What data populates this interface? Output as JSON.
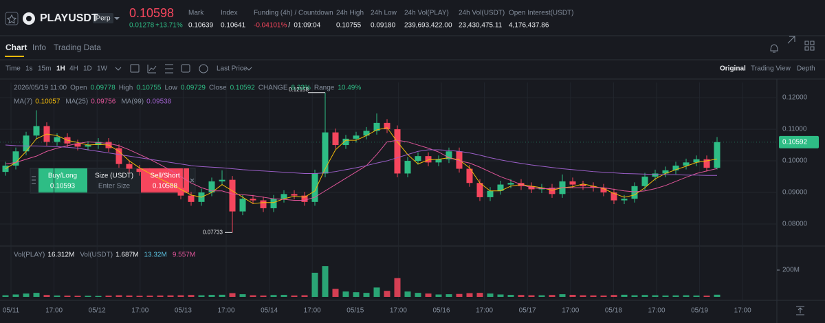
{
  "header": {
    "symbol": "PLAYUSDT",
    "badge": "Perp",
    "price": "0.10598",
    "change": "0.01278",
    "change_pct": "+13.71%",
    "stats": [
      {
        "label": "Mark",
        "value": "0.10639"
      },
      {
        "label": "Index",
        "value": "0.10641"
      }
    ],
    "funding": {
      "label": "Funding (4h) / Countdown",
      "rate": "-0.04101%",
      "countdown": "01:09:04"
    },
    "stats2": [
      {
        "label": "24h High",
        "value": "0.10755"
      },
      {
        "label": "24h Low",
        "value": "0.09180"
      },
      {
        "label": "24h Vol(PLAY)",
        "value": "239,693,422.00"
      },
      {
        "label": "24h Vol(USDT)",
        "value": "23,430,475.11"
      },
      {
        "label": "Open Interest(USDT)",
        "value": "4,176,437.86"
      }
    ]
  },
  "tabs": [
    "Chart",
    "Info",
    "Trading Data"
  ],
  "toolbar": {
    "time": "Time",
    "intervals": [
      "1s",
      "15m",
      "1H",
      "4H",
      "1D",
      "1W"
    ],
    "price_type": "Last Price",
    "views": [
      "Original",
      "Trading View",
      "Depth"
    ]
  },
  "ohlc_info": {
    "time": "2026/05/19 11:00",
    "open": "Open",
    "high": "High",
    "low": "Low",
    "close": "Close",
    "change_label": "CHANGE",
    "change": "8.33%",
    "range_label": "Range",
    "range": "10.49%"
  },
  "order": {
    "buy": "Buy/Long",
    "buy_price": "0.10593",
    "size": "Size (USDT)",
    "size_placeholder": "Enter Size",
    "sell": "Sell/Short",
    "sell_price": "0.10588"
  },
  "chart_data": {
    "type": "candlestick",
    "open": [
      0.0965,
      0.0985,
      0.103,
      0.108,
      0.111,
      0.106,
      0.1075,
      0.1055,
      0.1045,
      0.105,
      0.106,
      0.104,
      0.099,
      0.0975,
      0.0965,
      0.094,
      0.0925,
      0.0915,
      0.089,
      0.087,
      0.09,
      0.0935,
      0.094,
      0.084,
      0.088,
      0.0875,
      0.085,
      0.088,
      0.0895,
      0.089,
      0.087,
      0.096,
      0.109,
      0.105,
      0.107,
      0.108,
      0.1095,
      0.112,
      0.11,
      0.096,
      0.1,
      0.1015,
      0.0995,
      0.1005,
      0.103,
      0.0975,
      0.093,
      0.0885,
      0.0905,
      0.0925,
      0.093,
      0.092,
      0.091,
      0.0915,
      0.0895,
      0.0935,
      0.0925,
      0.092,
      0.0915,
      0.09,
      0.0875,
      0.088,
      0.092,
      0.095,
      0.096,
      0.097,
      0.0985,
      0.0995,
      0.1005,
      0.09778
    ],
    "high": [
      0.0997,
      0.1042,
      0.1092,
      0.116,
      0.1122,
      0.1087,
      0.1087,
      0.1067,
      0.1062,
      0.1072,
      0.1072,
      0.1052,
      0.1002,
      0.0987,
      0.0977,
      0.0952,
      0.0937,
      0.0927,
      0.0902,
      0.0912,
      0.0947,
      0.097,
      0.0952,
      0.0892,
      0.0892,
      0.0887,
      0.0892,
      0.0907,
      0.0907,
      0.0902,
      0.0972,
      0.12158,
      0.1102,
      0.1082,
      0.1092,
      0.1107,
      0.115,
      0.1132,
      0.1112,
      0.1012,
      0.1027,
      0.1027,
      0.1017,
      0.1042,
      0.1042,
      0.0987,
      0.0942,
      0.0917,
      0.0937,
      0.0942,
      0.0942,
      0.0932,
      0.0927,
      0.0927,
      0.0957,
      0.0947,
      0.0937,
      0.0932,
      0.0927,
      0.0912,
      0.0892,
      0.0932,
      0.0962,
      0.0972,
      0.0982,
      0.0997,
      0.1007,
      0.1017,
      0.1017,
      0.10755
    ],
    "low": [
      0.0953,
      0.0973,
      0.1018,
      0.1068,
      0.1048,
      0.1048,
      0.1043,
      0.1033,
      0.1033,
      0.1038,
      0.1028,
      0.0978,
      0.0963,
      0.0953,
      0.0928,
      0.0913,
      0.0903,
      0.0878,
      0.0858,
      0.0858,
      0.0888,
      0.0923,
      0.07733,
      0.0828,
      0.0863,
      0.0838,
      0.0838,
      0.0868,
      0.0878,
      0.0858,
      0.0858,
      0.0948,
      0.1038,
      0.1038,
      0.1058,
      0.1068,
      0.1083,
      0.1088,
      0.0948,
      0.0948,
      0.0988,
      0.0983,
      0.0983,
      0.0993,
      0.0963,
      0.0918,
      0.0873,
      0.0873,
      0.0893,
      0.0913,
      0.0908,
      0.0898,
      0.0898,
      0.0883,
      0.0883,
      0.0913,
      0.0908,
      0.0903,
      0.0888,
      0.0863,
      0.0863,
      0.0868,
      0.0908,
      0.0938,
      0.0948,
      0.0958,
      0.0973,
      0.0983,
      0.0966,
      0.09729
    ],
    "close": [
      0.0985,
      0.103,
      0.108,
      0.111,
      0.106,
      0.1075,
      0.1055,
      0.1045,
      0.105,
      0.106,
      0.104,
      0.099,
      0.0975,
      0.0965,
      0.094,
      0.0925,
      0.0915,
      0.089,
      0.087,
      0.09,
      0.0935,
      0.094,
      0.084,
      0.088,
      0.0875,
      0.085,
      0.088,
      0.0895,
      0.089,
      0.087,
      0.096,
      0.109,
      0.105,
      0.107,
      0.108,
      0.1095,
      0.112,
      0.11,
      0.096,
      0.1,
      0.1015,
      0.0995,
      0.1005,
      0.103,
      0.0975,
      0.093,
      0.0885,
      0.0905,
      0.0925,
      0.093,
      0.092,
      0.091,
      0.0915,
      0.0895,
      0.0935,
      0.0925,
      0.092,
      0.0915,
      0.09,
      0.0875,
      0.088,
      0.092,
      0.095,
      0.096,
      0.097,
      0.0985,
      0.0995,
      0.1005,
      0.0978,
      0.10592
    ],
    "up_color": "#2ebd85",
    "down_color": "#f6465d",
    "series": [
      {
        "name": "MA(7)",
        "color": "#f0b90b",
        "values": [
          0.0975,
          0.0995,
          0.103,
          0.107,
          0.1085,
          0.108,
          0.1065,
          0.1058,
          0.105,
          0.1052,
          0.105,
          0.103,
          0.1,
          0.0978,
          0.096,
          0.0943,
          0.0927,
          0.091,
          0.0892,
          0.0885,
          0.09,
          0.0925,
          0.0905,
          0.0885,
          0.0865,
          0.0868,
          0.0868,
          0.088,
          0.0888,
          0.0885,
          0.0905,
          0.0975,
          0.1035,
          0.1065,
          0.1065,
          0.108,
          0.1098,
          0.1105,
          0.106,
          0.102,
          0.099,
          0.1003,
          0.1005,
          0.101,
          0.1003,
          0.0978,
          0.093,
          0.0905,
          0.0905,
          0.092,
          0.0925,
          0.092,
          0.0915,
          0.0907,
          0.0915,
          0.0918,
          0.0927,
          0.092,
          0.0912,
          0.0897,
          0.0885,
          0.0892,
          0.0915,
          0.0943,
          0.096,
          0.0972,
          0.0983,
          0.0995,
          0.1,
          0.10057
        ]
      },
      {
        "name": "MA(25)",
        "color": "#e0559a",
        "values": [
          0.099,
          0.0995,
          0.1005,
          0.1015,
          0.103,
          0.104,
          0.1048,
          0.1055,
          0.106,
          0.1058,
          0.1055,
          0.1048,
          0.1035,
          0.102,
          0.1005,
          0.0988,
          0.097,
          0.095,
          0.093,
          0.0915,
          0.0905,
          0.0905,
          0.0895,
          0.0893,
          0.089,
          0.0885,
          0.088,
          0.0878,
          0.0875,
          0.0875,
          0.0885,
          0.0905,
          0.0925,
          0.0945,
          0.0965,
          0.0985,
          0.102,
          0.106,
          0.1065,
          0.106,
          0.105,
          0.104,
          0.1028,
          0.101,
          0.1,
          0.0993,
          0.098,
          0.0965,
          0.095,
          0.0938,
          0.0925,
          0.0915,
          0.0912,
          0.0912,
          0.0915,
          0.0915,
          0.0915,
          0.0916,
          0.0915,
          0.091,
          0.0905,
          0.0902,
          0.0905,
          0.0912,
          0.0922,
          0.0935,
          0.0948,
          0.096,
          0.0968,
          0.09756
        ]
      },
      {
        "name": "MA(99)",
        "color": "#9c5fc9",
        "values": [
          0.105,
          0.1048,
          0.1047,
          0.1047,
          0.1046,
          0.1045,
          0.1043,
          0.104,
          0.1035,
          0.103,
          0.1025,
          0.102,
          0.1015,
          0.101,
          0.1005,
          0.1,
          0.0995,
          0.099,
          0.0985,
          0.0982,
          0.098,
          0.0978,
          0.0975,
          0.0972,
          0.097,
          0.0968,
          0.0966,
          0.0964,
          0.0962,
          0.096,
          0.096,
          0.0962,
          0.0966,
          0.0972,
          0.0978,
          0.0985,
          0.0993,
          0.1,
          0.101,
          0.102,
          0.103,
          0.1035,
          0.1035,
          0.1033,
          0.103,
          0.1025,
          0.1018,
          0.101,
          0.1003,
          0.0997,
          0.0992,
          0.0987,
          0.0983,
          0.0979,
          0.0975,
          0.0972,
          0.0969,
          0.0966,
          0.0964,
          0.0962,
          0.096,
          0.0959,
          0.0958,
          0.0957,
          0.0956,
          0.0956,
          0.0955,
          0.0955,
          0.0954,
          0.09538
        ]
      }
    ],
    "ylim": [
      0.0737,
      0.1248
    ],
    "yticks": [
      {
        "value": 0.08,
        "label": "0.08000"
      },
      {
        "value": 0.09,
        "label": "0.09000"
      },
      {
        "value": 0.1,
        "label": "0.10000"
      },
      {
        "value": 0.11,
        "label": "0.11000"
      },
      {
        "value": 0.12,
        "label": "0.12000"
      }
    ],
    "grid": true,
    "time_labels": [
      "05/11",
      "17:00",
      "05/12",
      "17:00",
      "05/13",
      "17:00",
      "05/14",
      "17:00",
      "05/15",
      "17:00",
      "05/16",
      "17:00",
      "05/17",
      "17:00",
      "05/18",
      "17:00",
      "05/19",
      "17:00"
    ],
    "volume": {
      "values": [
        12,
        18,
        25,
        30,
        14,
        10,
        9,
        8,
        8,
        7,
        9,
        12,
        10,
        8,
        9,
        10,
        11,
        12,
        14,
        12,
        15,
        16,
        28,
        20,
        12,
        10,
        14,
        15,
        10,
        12,
        180,
        230,
        60,
        40,
        35,
        30,
        70,
        45,
        140,
        40,
        30,
        25,
        18,
        20,
        22,
        28,
        30,
        25,
        18,
        15,
        14,
        12,
        12,
        14,
        20,
        15,
        12,
        11,
        10,
        14,
        16,
        12,
        14,
        12,
        10,
        11,
        12,
        10,
        9,
        16.312
      ],
      "ylim": [
        0,
        359
      ],
      "yticks": [
        {
          "value": 200,
          "label": "200M"
        }
      ],
      "legend": [
        {
          "name": "Vol(PLAY)",
          "value": "16.312M",
          "color": "#eaecef"
        },
        {
          "name": "Vol(USDT)",
          "value": "1.687M",
          "color": "#eaecef"
        },
        {
          "value": "13.32M",
          "color": "#5bc0de"
        },
        {
          "value": "9.557M",
          "color": "#e0559a"
        }
      ]
    }
  }
}
